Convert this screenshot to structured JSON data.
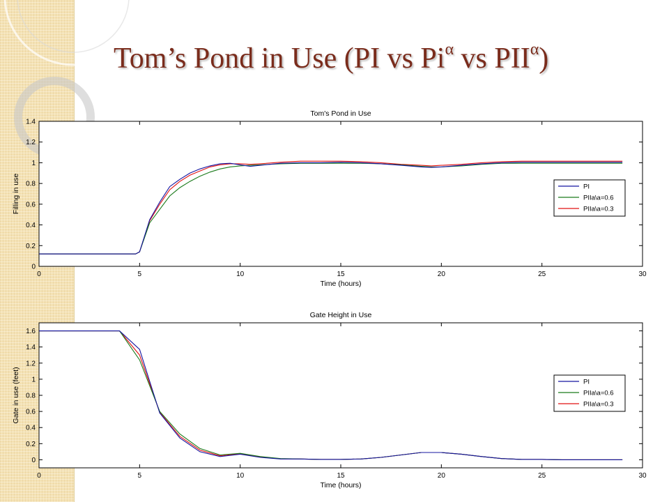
{
  "slide": {
    "title_main": "Tom’s Pond in Use (PI vs Pi",
    "title_sup1": "α",
    "title_mid": " vs PII",
    "title_sup2": "α",
    "title_end": ")"
  },
  "colors": {
    "title": "#7a2c1c",
    "PI": "#1414a0",
    "PIIa06": "#1a7a1a",
    "PIIa03": "#e01010"
  },
  "chart_data": [
    {
      "type": "line",
      "title": "Tom's Pond in Use",
      "xlabel": "Time (hours)",
      "ylabel": "Filling in use",
      "xlim": [
        0,
        30
      ],
      "ylim": [
        0,
        1.4
      ],
      "xticks": [
        0,
        5,
        10,
        15,
        20,
        25,
        30
      ],
      "yticks": [
        0,
        0.2,
        0.4,
        0.6,
        0.8,
        1,
        1.2,
        1.4
      ],
      "legend_position": "right",
      "series": [
        {
          "name": "PI",
          "color": "#1414a0",
          "x": [
            0,
            4.8,
            5,
            5.5,
            6,
            6.5,
            7,
            7.5,
            8,
            8.5,
            9,
            9.5,
            10,
            10.5,
            11,
            12,
            13,
            14,
            15,
            16,
            17,
            18,
            19,
            19.5,
            20,
            21,
            22,
            23,
            24,
            25,
            26,
            27,
            28,
            29
          ],
          "y": [
            0.12,
            0.12,
            0.14,
            0.45,
            0.62,
            0.77,
            0.84,
            0.9,
            0.94,
            0.97,
            0.99,
            0.995,
            0.98,
            0.965,
            0.975,
            0.995,
            1.0,
            1.0,
            1.005,
            1.0,
            0.99,
            0.975,
            0.96,
            0.955,
            0.96,
            0.975,
            0.99,
            1.0,
            1.005,
            1.005,
            1.005,
            1.005,
            1.005,
            1.005
          ]
        },
        {
          "name": "PIIa\\a=0.6",
          "color": "#1a7a1a",
          "x": [
            0,
            4.8,
            5,
            5.5,
            6,
            6.5,
            7,
            7.5,
            8,
            8.5,
            9,
            9.5,
            10,
            10.5,
            11,
            12,
            13,
            14,
            15,
            16,
            17,
            18,
            19,
            19.5,
            20,
            21,
            22,
            23,
            24,
            25,
            26,
            27,
            28,
            29
          ],
          "y": [
            0.12,
            0.12,
            0.14,
            0.42,
            0.55,
            0.68,
            0.76,
            0.82,
            0.87,
            0.91,
            0.94,
            0.96,
            0.97,
            0.975,
            0.98,
            0.99,
            0.995,
            0.995,
            0.995,
            0.995,
            0.99,
            0.98,
            0.965,
            0.96,
            0.96,
            0.97,
            0.985,
            0.995,
            0.995,
            0.995,
            0.995,
            0.995,
            0.995,
            0.995
          ]
        },
        {
          "name": "PIIa\\a=0.3",
          "color": "#e01010",
          "x": [
            0,
            4.8,
            5,
            5.5,
            6,
            6.5,
            7,
            7.5,
            8,
            8.5,
            9,
            9.5,
            10,
            10.5,
            11,
            12,
            13,
            14,
            15,
            16,
            17,
            18,
            19,
            19.5,
            20,
            21,
            22,
            23,
            24,
            25,
            26,
            27,
            28,
            29
          ],
          "y": [
            0.12,
            0.12,
            0.14,
            0.44,
            0.6,
            0.74,
            0.82,
            0.88,
            0.92,
            0.96,
            0.98,
            0.99,
            0.99,
            0.985,
            0.99,
            1.005,
            1.015,
            1.015,
            1.015,
            1.01,
            1.0,
            0.985,
            0.975,
            0.97,
            0.975,
            0.985,
            1.0,
            1.01,
            1.015,
            1.015,
            1.015,
            1.015,
            1.015,
            1.015
          ]
        }
      ]
    },
    {
      "type": "line",
      "title": "Gate Height in Use",
      "xlabel": "Time (hours)",
      "ylabel": "Gate in use (feet)",
      "xlim": [
        0,
        30
      ],
      "ylim": [
        -0.1,
        1.7
      ],
      "xticks": [
        0,
        5,
        10,
        15,
        20,
        25,
        30
      ],
      "yticks": [
        0,
        0.2,
        0.4,
        0.6,
        0.8,
        1,
        1.2,
        1.4,
        1.6
      ],
      "legend_position": "right",
      "series": [
        {
          "name": "PI",
          "color": "#1414a0",
          "x": [
            0,
            4,
            5,
            6,
            7,
            8,
            9,
            10,
            11,
            12,
            13,
            14,
            15,
            16,
            17,
            18,
            19,
            20,
            21,
            22,
            23,
            24,
            25,
            26,
            27,
            28,
            29
          ],
          "y": [
            1.6,
            1.6,
            1.37,
            0.58,
            0.27,
            0.1,
            0.04,
            0.07,
            0.03,
            0.01,
            0.01,
            0.005,
            0.005,
            0.01,
            0.03,
            0.06,
            0.09,
            0.09,
            0.07,
            0.04,
            0.015,
            0.005,
            0.005,
            0.0,
            0.0,
            0.0,
            0.0
          ]
        },
        {
          "name": "PIIa\\a=0.6",
          "color": "#1a7a1a",
          "x": [
            0,
            4,
            5,
            6,
            7,
            8,
            9,
            10,
            11,
            12,
            13,
            14,
            15,
            16,
            17,
            18,
            19,
            20,
            21,
            22,
            23,
            24,
            25,
            26,
            27,
            28,
            29
          ],
          "y": [
            1.6,
            1.6,
            1.24,
            0.6,
            0.32,
            0.14,
            0.06,
            0.08,
            0.04,
            0.015,
            0.01,
            0.005,
            0.005,
            0.01,
            0.03,
            0.06,
            0.09,
            0.09,
            0.07,
            0.04,
            0.015,
            0.005,
            0.005,
            0.0,
            0.0,
            0.0,
            0.0
          ]
        },
        {
          "name": "PIIa\\a=0.3",
          "color": "#e01010",
          "x": [
            0,
            4,
            5,
            6,
            7,
            8,
            9,
            10,
            11,
            12,
            13,
            14,
            15,
            16,
            17,
            18,
            19,
            20,
            21,
            22,
            23,
            24,
            25,
            26,
            27,
            28,
            29
          ],
          "y": [
            1.6,
            1.6,
            1.3,
            0.59,
            0.29,
            0.12,
            0.05,
            0.075,
            0.035,
            0.012,
            0.01,
            0.005,
            0.005,
            0.01,
            0.03,
            0.06,
            0.09,
            0.09,
            0.07,
            0.04,
            0.015,
            0.005,
            0.005,
            0.0,
            0.0,
            0.0,
            0.0
          ]
        }
      ]
    }
  ]
}
